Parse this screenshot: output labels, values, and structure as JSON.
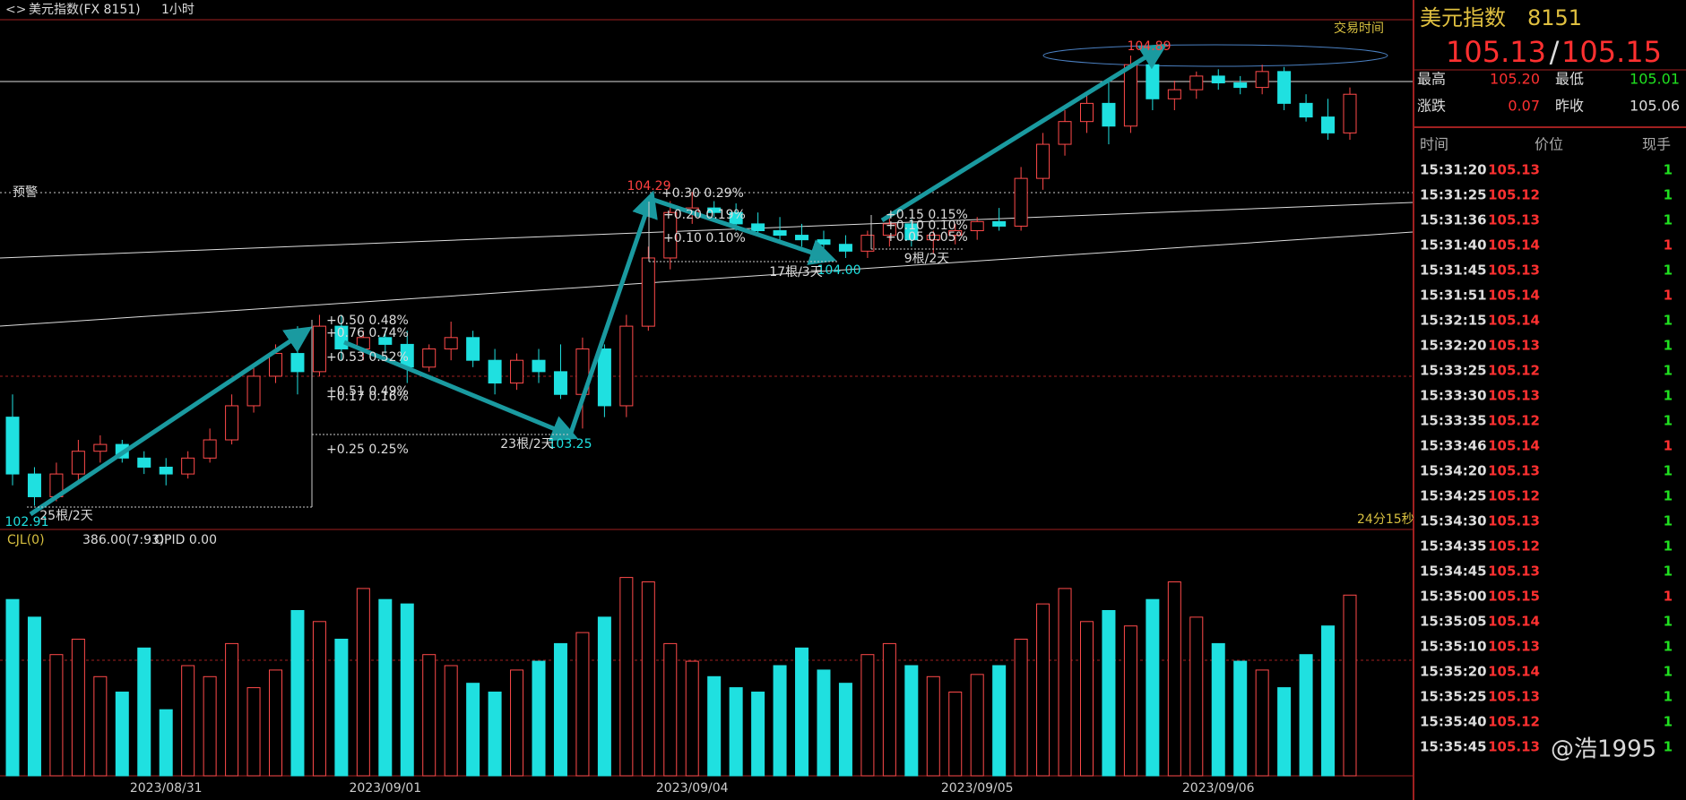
{
  "header": {
    "title": "美元指数(FX 8151)",
    "period": "1小时",
    "trade_time": "交易时间",
    "alert": "预警",
    "countdown": "24分15秒",
    "indicator": "CJL(0)",
    "indicator_value": "386.00(7:93)",
    "opid": "OPID 0.00",
    "watermark": "@浩1995"
  },
  "annotations": [
    "104.29",
    "104.89",
    "102.91",
    "103.25",
    "104.00",
    "25根/2天",
    "23根/2天",
    "17根/3天",
    "9根/2天",
    "+0.50  0.48%",
    "+0.76  0.74%",
    "+0.53  0.52%",
    "+0.51  0.49%",
    "+0.17  0.16%",
    "+0.25  0.25%",
    "+0.30  0.29%",
    "+0.20  0.19%",
    "+0.10  0.10%",
    "+0.15  0.15%",
    "+0.10  0.10%",
    "+0.05  0.05%"
  ],
  "chart_data": [
    {
      "type": "candlestick",
      "up_color": "#ff4a4a",
      "down_color": "#1fe0e0",
      "ylim": [
        102.81,
        105.04
      ],
      "categories": [
        null,
        null,
        null,
        null,
        null,
        null,
        null,
        "2023/08/31",
        null,
        null,
        null,
        null,
        null,
        null,
        null,
        null,
        null,
        "2023/09/01",
        null,
        null,
        null,
        null,
        null,
        null,
        null,
        null,
        null,
        null,
        null,
        null,
        null,
        "2023/09/04",
        null,
        null,
        null,
        null,
        null,
        null,
        null,
        null,
        null,
        null,
        null,
        null,
        "2023/09/05",
        null,
        null,
        null,
        null,
        null,
        null,
        null,
        null,
        null,
        null,
        "2023/09/06",
        null,
        null,
        null,
        null,
        null,
        null
      ],
      "open": [
        103.3,
        103.05,
        102.95,
        103.05,
        103.15,
        103.18,
        103.12,
        103.08,
        103.05,
        103.12,
        103.2,
        103.35,
        103.48,
        103.58,
        103.5,
        103.7,
        103.6,
        103.65,
        103.62,
        103.52,
        103.6,
        103.65,
        103.55,
        103.45,
        103.55,
        103.5,
        103.4,
        103.6,
        103.35,
        103.7,
        104.0,
        104.2,
        104.22,
        104.2,
        104.15,
        104.12,
        104.1,
        104.08,
        104.06,
        104.03,
        104.1,
        104.15,
        104.08,
        104.1,
        104.12,
        104.16,
        104.14,
        104.35,
        104.5,
        104.6,
        104.68,
        104.58,
        104.85,
        104.7,
        104.74,
        104.8,
        104.77,
        104.75,
        104.82,
        104.68,
        104.62,
        104.55
      ],
      "high": [
        103.4,
        103.08,
        103.1,
        103.2,
        103.22,
        103.2,
        103.15,
        103.12,
        103.15,
        103.25,
        103.4,
        103.52,
        103.62,
        103.7,
        103.75,
        103.75,
        103.68,
        103.68,
        103.68,
        103.62,
        103.72,
        103.68,
        103.6,
        103.58,
        103.6,
        103.62,
        103.65,
        103.62,
        103.75,
        104.05,
        104.25,
        104.29,
        104.25,
        104.24,
        104.2,
        104.18,
        104.15,
        104.12,
        104.1,
        104.12,
        104.18,
        104.17,
        104.12,
        104.15,
        104.18,
        104.22,
        104.4,
        104.55,
        104.65,
        104.72,
        104.78,
        104.89,
        104.88,
        104.78,
        104.82,
        104.83,
        104.8,
        104.85,
        104.84,
        104.72,
        104.7,
        104.75
      ],
      "low": [
        103.0,
        102.91,
        102.93,
        103.02,
        103.1,
        103.1,
        103.05,
        103.0,
        103.03,
        103.1,
        103.18,
        103.32,
        103.45,
        103.4,
        103.48,
        103.55,
        103.55,
        103.58,
        103.45,
        103.5,
        103.55,
        103.52,
        103.4,
        103.42,
        103.45,
        103.38,
        103.25,
        103.3,
        103.3,
        103.68,
        103.95,
        104.15,
        104.18,
        104.12,
        104.1,
        104.08,
        104.05,
        104.02,
        104.0,
        104.0,
        104.05,
        104.05,
        104.02,
        104.06,
        104.08,
        104.12,
        104.12,
        104.3,
        104.45,
        104.55,
        104.5,
        104.55,
        104.65,
        104.65,
        104.7,
        104.74,
        104.72,
        104.72,
        104.65,
        104.6,
        104.52,
        104.52
      ],
      "close": [
        103.05,
        102.95,
        103.05,
        103.15,
        103.18,
        103.12,
        103.08,
        103.05,
        103.12,
        103.2,
        103.35,
        103.48,
        103.58,
        103.5,
        103.7,
        103.6,
        103.65,
        103.62,
        103.52,
        103.6,
        103.65,
        103.55,
        103.45,
        103.55,
        103.5,
        103.4,
        103.6,
        103.35,
        103.7,
        104.0,
        104.2,
        104.22,
        104.2,
        104.15,
        104.12,
        104.1,
        104.08,
        104.06,
        104.03,
        104.1,
        104.15,
        104.08,
        104.1,
        104.12,
        104.16,
        104.14,
        104.35,
        104.5,
        104.6,
        104.68,
        104.58,
        104.85,
        104.7,
        104.74,
        104.8,
        104.77,
        104.75,
        104.82,
        104.68,
        104.62,
        104.55,
        104.72
      ]
    },
    {
      "type": "bar",
      "ylim": [
        0,
        100
      ],
      "values": [
        80,
        72,
        55,
        62,
        45,
        38,
        58,
        30,
        50,
        45,
        60,
        40,
        48,
        75,
        70,
        62,
        85,
        80,
        78,
        55,
        50,
        42,
        38,
        48,
        52,
        60,
        65,
        72,
        90,
        88,
        60,
        52,
        45,
        40,
        38,
        50,
        58,
        48,
        42,
        55,
        60,
        50,
        45,
        38,
        46,
        50,
        62,
        78,
        85,
        70,
        75,
        68,
        80,
        88,
        72,
        60,
        52,
        48,
        40,
        55,
        68,
        82
      ]
    }
  ],
  "quote": {
    "name": "美元指数",
    "code": "8151",
    "bid": "105.13",
    "sep": "/",
    "ask": "105.15",
    "high_label": "最高",
    "high": "105.20",
    "low_label": "最低",
    "low": "105.01",
    "change_label": "涨跌",
    "change": "0.07",
    "prev_label": "昨收",
    "prev": "105.06"
  },
  "trades": {
    "headers": [
      "时间",
      "价位",
      "现手"
    ],
    "rows": [
      [
        "15:31:20",
        "105.13",
        "1",
        "#20e020"
      ],
      [
        "15:31:25",
        "105.12",
        "1",
        "#20e020"
      ],
      [
        "15:31:36",
        "105.13",
        "1",
        "#20e020"
      ],
      [
        "15:31:40",
        "105.14",
        "1",
        "#ff3030"
      ],
      [
        "15:31:45",
        "105.13",
        "1",
        "#20e020"
      ],
      [
        "15:31:51",
        "105.14",
        "1",
        "#ff3030"
      ],
      [
        "15:32:15",
        "105.14",
        "1",
        "#20e020"
      ],
      [
        "15:32:20",
        "105.13",
        "1",
        "#20e020"
      ],
      [
        "15:33:25",
        "105.12",
        "1",
        "#20e020"
      ],
      [
        "15:33:30",
        "105.13",
        "1",
        "#20e020"
      ],
      [
        "15:33:35",
        "105.12",
        "1",
        "#20e020"
      ],
      [
        "15:33:46",
        "105.14",
        "1",
        "#ff3030"
      ],
      [
        "15:34:20",
        "105.13",
        "1",
        "#20e020"
      ],
      [
        "15:34:25",
        "105.12",
        "1",
        "#20e020"
      ],
      [
        "15:34:30",
        "105.13",
        "1",
        "#20e020"
      ],
      [
        "15:34:35",
        "105.12",
        "1",
        "#20e020"
      ],
      [
        "15:34:45",
        "105.13",
        "1",
        "#20e020"
      ],
      [
        "15:35:00",
        "105.15",
        "1",
        "#ff3030"
      ],
      [
        "15:35:05",
        "105.14",
        "1",
        "#20e020"
      ],
      [
        "15:35:10",
        "105.13",
        "1",
        "#20e020"
      ],
      [
        "15:35:20",
        "105.14",
        "1",
        "#20e020"
      ],
      [
        "15:35:25",
        "105.13",
        "1",
        "#20e020"
      ],
      [
        "15:35:40",
        "105.12",
        "1",
        "#20e020"
      ],
      [
        "15:35:45",
        "105.13",
        "1",
        "#20e020"
      ]
    ]
  }
}
